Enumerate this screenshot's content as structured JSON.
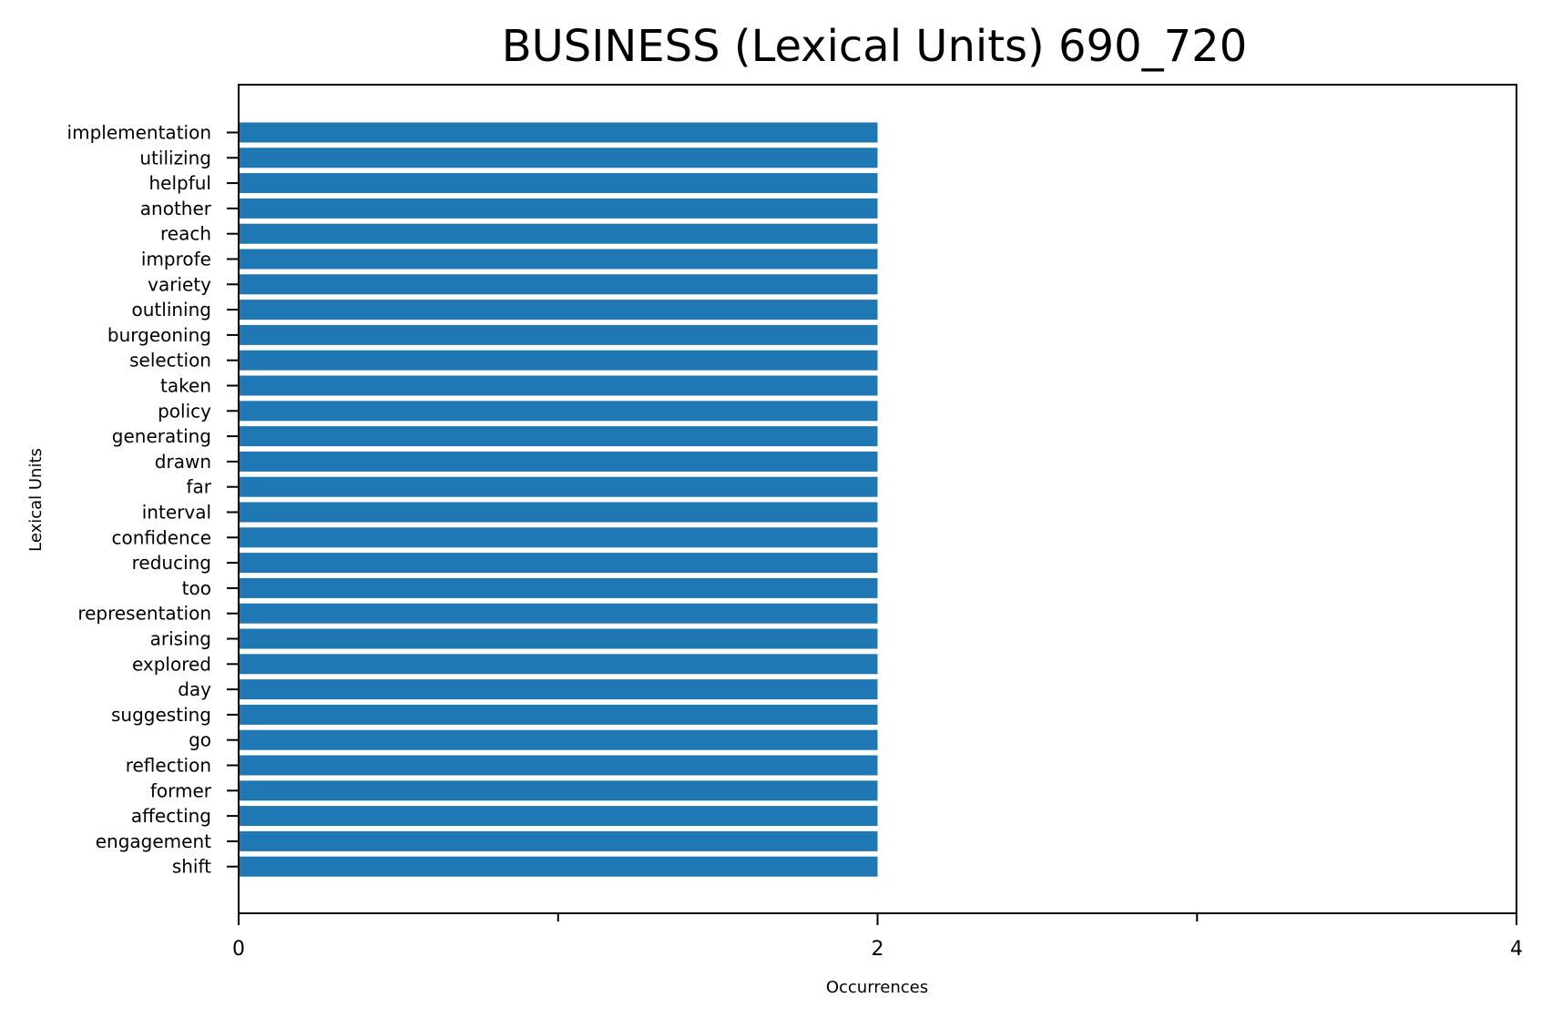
{
  "chart_data": {
    "type": "bar",
    "orientation": "horizontal",
    "title": "BUSINESS (Lexical Units) 690_720",
    "xlabel": "Occurrences",
    "ylabel": "Lexical Units",
    "xlim": [
      0,
      4
    ],
    "xticks": [
      0,
      2,
      4
    ],
    "x_minor_ticks": [
      1,
      3
    ],
    "grid": false,
    "legend": "none",
    "bar_color": "#1f77b4",
    "categories": [
      "implementation",
      "utilizing",
      "helpful",
      "another",
      "reach",
      "improfe",
      "variety",
      "outlining",
      "burgeoning",
      "selection",
      "taken",
      "policy",
      "generating",
      "drawn",
      "far",
      "interval",
      "confidence",
      "reducing",
      "too",
      "representation",
      "arising",
      "explored",
      "day",
      "suggesting",
      "go",
      "reflection",
      "former",
      "affecting",
      "engagement",
      "shift"
    ],
    "values": [
      2,
      2,
      2,
      2,
      2,
      2,
      2,
      2,
      2,
      2,
      2,
      2,
      2,
      2,
      2,
      2,
      2,
      2,
      2,
      2,
      2,
      2,
      2,
      2,
      2,
      2,
      2,
      2,
      2,
      2
    ]
  }
}
